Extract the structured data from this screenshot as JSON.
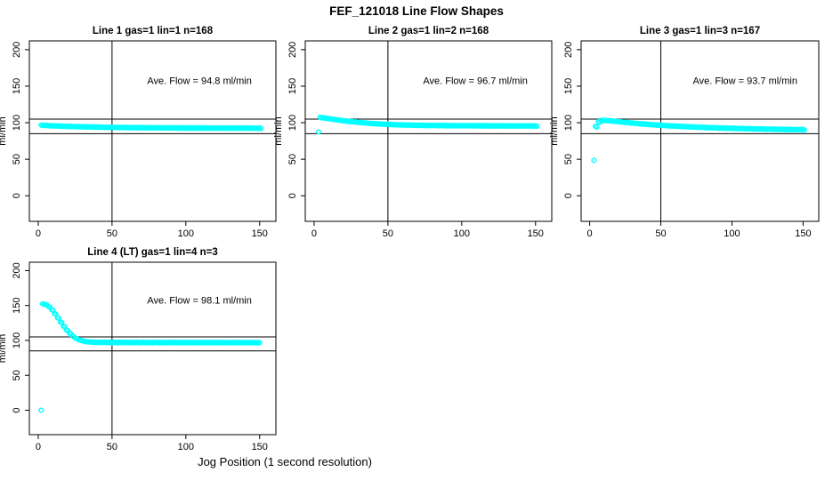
{
  "page": {
    "main_title": "FEF_121018  Line Flow Shapes",
    "x_axis_label": "Jog Position (1 second resolution)"
  },
  "chart_data": [
    {
      "type": "scatter",
      "title": "Line 1 gas=1 lin=1 n=168",
      "n": 168,
      "ave_flow": 94.8,
      "annotation": "Ave. Flow =  94.8  ml/min",
      "ylabel": "ml/min",
      "x_ticks": [
        0,
        50,
        100,
        150
      ],
      "y_ticks": [
        0,
        50,
        100,
        150,
        200
      ],
      "xlim": [
        -6,
        161
      ],
      "ylim": [
        -35,
        212
      ],
      "point_color": "#00ffff",
      "reference_lines": {
        "horizontal": [
          105,
          85
        ],
        "vertical": [
          50
        ]
      },
      "outliers": [],
      "series": {
        "name": "flow",
        "x_start": 2,
        "x_step": 2,
        "y": [
          96.9,
          96.7,
          96.5,
          96.3,
          96.1,
          96.0,
          95.8,
          95.7,
          95.5,
          95.4,
          95.3,
          95.1,
          95.0,
          94.9,
          94.8,
          94.7,
          94.6,
          94.5,
          94.5,
          94.4,
          94.3,
          94.2,
          94.2,
          94.1,
          94.0,
          94.0,
          93.9,
          93.9,
          93.8,
          93.8,
          93.7,
          93.7,
          93.6,
          93.6,
          93.6,
          93.5,
          93.5,
          93.5,
          93.4,
          93.4,
          93.4,
          93.4,
          93.3,
          93.3,
          93.3,
          93.3,
          93.3,
          93.2,
          93.2,
          93.2,
          93.2,
          93.2,
          93.2,
          93.2,
          93.1,
          93.1,
          93.1,
          93.1,
          93.1,
          93.1,
          93.1,
          93.1,
          93.0,
          93.0,
          93.0,
          93.0,
          93.0,
          93.0,
          93.0,
          93.0,
          93.0,
          93.0,
          92.9,
          92.9,
          92.9
        ]
      }
    },
    {
      "type": "scatter",
      "title": "Line 2 gas=1 lin=2 n=168",
      "n": 168,
      "ave_flow": 96.7,
      "annotation": "Ave. Flow =  96.7  ml/min",
      "ylabel": "ml/min",
      "x_ticks": [
        0,
        50,
        100,
        150
      ],
      "y_ticks": [
        0,
        50,
        100,
        150,
        200
      ],
      "xlim": [
        -6,
        161
      ],
      "ylim": [
        -35,
        212
      ],
      "point_color": "#00ffff",
      "reference_lines": {
        "horizontal": [
          105,
          85
        ],
        "vertical": [
          50
        ]
      },
      "outliers": [
        [
          3,
          87.5
        ]
      ],
      "series": {
        "name": "flow",
        "x_start": 4,
        "x_step": 2,
        "y": [
          107.5,
          107.0,
          106.4,
          105.8,
          105.2,
          104.6,
          104.1,
          103.5,
          103.0,
          102.5,
          102.0,
          101.6,
          101.2,
          100.8,
          100.4,
          100.1,
          99.8,
          99.5,
          99.2,
          98.9,
          98.7,
          98.5,
          98.3,
          98.1,
          97.9,
          97.7,
          97.6,
          97.4,
          97.3,
          97.2,
          97.1,
          97.0,
          96.9,
          96.8,
          96.8,
          96.7,
          96.7,
          96.6,
          96.6,
          96.5,
          96.5,
          96.5,
          96.4,
          96.4,
          96.4,
          96.4,
          96.3,
          96.3,
          96.3,
          96.3,
          96.3,
          96.2,
          96.2,
          96.2,
          96.2,
          96.2,
          96.2,
          96.1,
          96.1,
          96.1,
          96.1,
          96.1,
          96.1,
          96.1,
          96.0,
          96.0,
          96.0,
          96.0,
          96.0,
          96.0,
          96.0,
          96.0,
          95.9,
          95.9
        ]
      }
    },
    {
      "type": "scatter",
      "title": "Line 3 gas=1 lin=3 n=167",
      "n": 167,
      "ave_flow": 93.7,
      "annotation": "Ave. Flow =  93.7  ml/min",
      "ylabel": "ml/min",
      "x_ticks": [
        0,
        50,
        100,
        150
      ],
      "y_ticks": [
        0,
        50,
        100,
        150,
        200
      ],
      "xlim": [
        -6,
        161
      ],
      "ylim": [
        -35,
        212
      ],
      "point_color": "#00ffff",
      "reference_lines": {
        "horizontal": [
          105,
          85
        ],
        "vertical": [
          50
        ]
      },
      "outliers": [
        [
          3,
          48.5
        ]
      ],
      "series": {
        "name": "flow",
        "x_start": 4,
        "x_step": 2,
        "y": [
          95.0,
          101.5,
          103.2,
          103.5,
          103.3,
          103.0,
          102.6,
          102.2,
          101.8,
          101.4,
          101.0,
          100.6,
          100.2,
          99.8,
          99.5,
          99.1,
          98.8,
          98.5,
          98.2,
          97.9,
          97.6,
          97.3,
          97.1,
          96.8,
          96.6,
          96.3,
          96.1,
          95.9,
          95.7,
          95.5,
          95.3,
          95.1,
          94.9,
          94.7,
          94.6,
          94.4,
          94.2,
          94.1,
          93.9,
          93.8,
          93.6,
          93.5,
          93.4,
          93.2,
          93.1,
          93.0,
          92.9,
          92.8,
          92.7,
          92.6,
          92.5,
          92.4,
          92.3,
          92.2,
          92.1,
          92.0,
          91.9,
          91.9,
          91.8,
          91.7,
          91.6,
          91.6,
          91.5,
          91.4,
          91.4,
          91.3,
          91.2,
          91.2,
          91.1,
          91.1,
          91.0,
          91.0,
          90.9,
          90.9
        ]
      }
    },
    {
      "type": "scatter",
      "title": "Line 4 (LT) gas=1 lin=4 n=3",
      "n": 3,
      "ave_flow": 98.1,
      "annotation": "Ave. Flow =  98.1  ml/min",
      "ylabel": "ml/min",
      "x_ticks": [
        0,
        50,
        100,
        150
      ],
      "y_ticks": [
        0,
        50,
        100,
        150,
        200
      ],
      "xlim": [
        -6,
        161
      ],
      "ylim": [
        -35,
        212
      ],
      "point_color": "#00ffff",
      "reference_lines": {
        "horizontal": [
          105,
          85
        ],
        "vertical": [
          50
        ]
      },
      "outliers": [
        [
          2,
          0
        ]
      ],
      "series": {
        "name": "flow",
        "x_start": 3,
        "x_step": 2,
        "y": [
          152.5,
          151.5,
          148.5,
          144.0,
          138.5,
          132.5,
          126.5,
          120.5,
          115.0,
          110.5,
          106.5,
          103.5,
          101.5,
          100.0,
          99.0,
          98.4,
          98.1,
          97.9,
          97.7,
          97.6,
          97.6,
          97.5,
          97.5,
          97.5,
          97.5,
          97.4,
          97.5,
          97.4,
          97.5,
          97.4,
          97.4,
          97.5,
          97.4,
          97.4,
          97.5,
          97.4,
          97.4,
          97.4,
          97.5,
          97.4,
          97.4,
          97.4,
          97.4,
          97.4,
          97.5,
          97.4,
          97.4,
          97.4,
          97.4,
          97.4,
          97.3,
          97.4,
          97.4,
          97.3,
          97.4,
          97.3,
          97.3,
          97.4,
          97.3,
          97.3,
          97.4,
          97.3,
          97.3,
          97.3,
          97.3,
          97.4,
          97.3,
          97.3,
          97.3,
          97.3,
          97.3,
          97.3,
          97.3,
          97.3
        ]
      }
    }
  ]
}
